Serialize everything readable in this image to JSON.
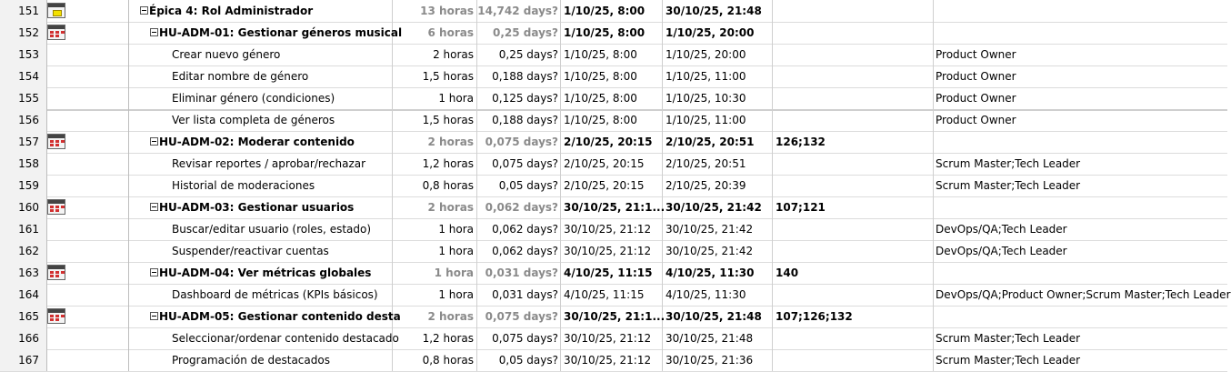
{
  "rows": [
    {
      "id": "151",
      "name": "Épica 4: Rol Administrador",
      "work": "13 horas",
      "duration": "14,742 days?",
      "start": "1/10/25, 8:00",
      "finish": "30/10/25, 21:48",
      "pred": "",
      "res": "",
      "summary": true,
      "level": 0,
      "icon": "calendar-yellow-icon"
    },
    {
      "id": "152",
      "name": "HU-ADM-01: Gestionar géneros musical",
      "work": "6 horas",
      "duration": "0,25 days?",
      "start": "1/10/25, 8:00",
      "finish": "1/10/25, 20:00",
      "pred": "",
      "res": "",
      "summary": true,
      "level": 1,
      "icon": "calendar-icon"
    },
    {
      "id": "153",
      "name": "Crear nuevo género",
      "work": "2 horas",
      "duration": "0,25 days?",
      "start": "1/10/25, 8:00",
      "finish": "1/10/25, 20:00",
      "pred": "",
      "res": "Product Owner",
      "summary": false,
      "level": 2,
      "icon": ""
    },
    {
      "id": "154",
      "name": "Editar nombre de género",
      "work": "1,5 horas",
      "duration": "0,188 days?",
      "start": "1/10/25, 8:00",
      "finish": "1/10/25, 11:00",
      "pred": "",
      "res": "Product Owner",
      "summary": false,
      "level": 2,
      "icon": ""
    },
    {
      "id": "155",
      "name": "Eliminar género (condiciones)",
      "work": "1 hora",
      "duration": "0,125 days?",
      "start": "1/10/25, 8:00",
      "finish": "1/10/25, 10:30",
      "pred": "",
      "res": "Product Owner",
      "summary": false,
      "level": 2,
      "icon": ""
    },
    {
      "id": "156",
      "name": "Ver lista completa de géneros",
      "work": "1,5 horas",
      "duration": "0,188 days?",
      "start": "1/10/25, 8:00",
      "finish": "1/10/25, 11:00",
      "pred": "",
      "res": "Product Owner",
      "summary": false,
      "level": 2,
      "icon": ""
    },
    {
      "id": "157",
      "name": "HU-ADM-02: Moderar contenido",
      "work": "2 horas",
      "duration": "0,075 days?",
      "start": "2/10/25, 20:15",
      "finish": "2/10/25, 20:51",
      "pred": "126;132",
      "res": "",
      "summary": true,
      "level": 1,
      "icon": "calendar-icon"
    },
    {
      "id": "158",
      "name": "Revisar reportes / aprobar/rechazar",
      "work": "1,2 horas",
      "duration": "0,075 days?",
      "start": "2/10/25, 20:15",
      "finish": "2/10/25, 20:51",
      "pred": "",
      "res": "Scrum Master;Tech Leader",
      "summary": false,
      "level": 2,
      "icon": ""
    },
    {
      "id": "159",
      "name": "Historial de moderaciones",
      "work": "0,8 horas",
      "duration": "0,05 days?",
      "start": "2/10/25, 20:15",
      "finish": "2/10/25, 20:39",
      "pred": "",
      "res": "Scrum Master;Tech Leader",
      "summary": false,
      "level": 2,
      "icon": ""
    },
    {
      "id": "160",
      "name": "HU-ADM-03: Gestionar usuarios",
      "work": "2 horas",
      "duration": "0,062 days?",
      "start": "30/10/25, 21:1...",
      "finish": "30/10/25, 21:42",
      "pred": "107;121",
      "res": "",
      "summary": true,
      "level": 1,
      "icon": "calendar-icon"
    },
    {
      "id": "161",
      "name": "Buscar/editar usuario (roles, estado)",
      "work": "1 hora",
      "duration": "0,062 days?",
      "start": "30/10/25, 21:12",
      "finish": "30/10/25, 21:42",
      "pred": "",
      "res": "DevOps/QA;Tech Leader",
      "summary": false,
      "level": 2,
      "icon": ""
    },
    {
      "id": "162",
      "name": "Suspender/reactivar cuentas",
      "work": "1 hora",
      "duration": "0,062 days?",
      "start": "30/10/25, 21:12",
      "finish": "30/10/25, 21:42",
      "pred": "",
      "res": "DevOps/QA;Tech Leader",
      "summary": false,
      "level": 2,
      "icon": ""
    },
    {
      "id": "163",
      "name": "HU-ADM-04: Ver métricas globales",
      "work": "1 hora",
      "duration": "0,031 days?",
      "start": "4/10/25, 11:15",
      "finish": "4/10/25, 11:30",
      "pred": "140",
      "res": "",
      "summary": true,
      "level": 1,
      "icon": "calendar-icon"
    },
    {
      "id": "164",
      "name": "Dashboard de métricas (KPIs básicos)",
      "work": "1 hora",
      "duration": "0,031 days?",
      "start": "4/10/25, 11:15",
      "finish": "4/10/25, 11:30",
      "pred": "",
      "res": "DevOps/QA;Product Owner;Scrum Master;Tech Leader",
      "summary": false,
      "level": 2,
      "icon": ""
    },
    {
      "id": "165",
      "name": "HU-ADM-05: Gestionar contenido desta",
      "work": "2 horas",
      "duration": "0,075 days?",
      "start": "30/10/25, 21:1...",
      "finish": "30/10/25, 21:48",
      "pred": "107;126;132",
      "res": "",
      "summary": true,
      "level": 1,
      "icon": "calendar-icon"
    },
    {
      "id": "166",
      "name": "Seleccionar/ordenar contenido destacado",
      "work": "1,2 horas",
      "duration": "0,075 days?",
      "start": "30/10/25, 21:12",
      "finish": "30/10/25, 21:48",
      "pred": "",
      "res": "Scrum Master;Tech Leader",
      "summary": false,
      "level": 2,
      "icon": ""
    },
    {
      "id": "167",
      "name": "Programación de destacados",
      "work": "0,8 horas",
      "duration": "0,05 days?",
      "start": "30/10/25, 21:12",
      "finish": "30/10/25, 21:36",
      "pred": "",
      "res": "Scrum Master;Tech Leader",
      "summary": false,
      "level": 2,
      "icon": ""
    }
  ]
}
